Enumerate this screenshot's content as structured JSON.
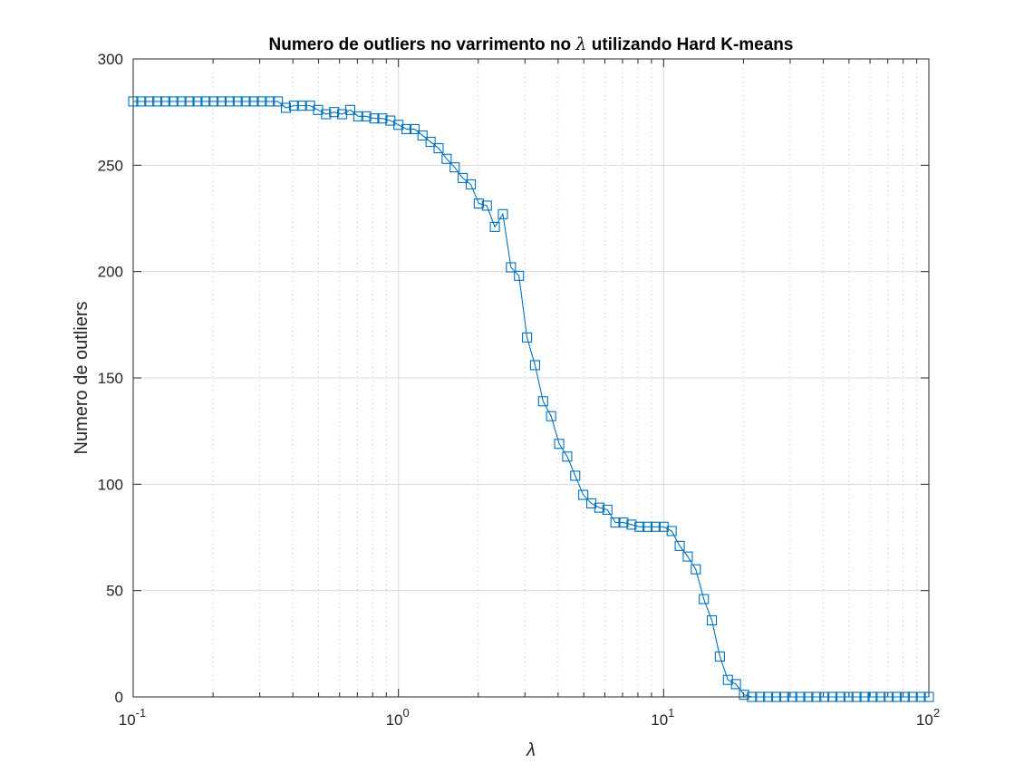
{
  "chart_data": {
    "type": "line",
    "title_prefix": "Numero de outliers no varrimento no ",
    "title_symbol": "λ",
    "title_suffix": " utilizando Hard K-means",
    "xlabel": "λ",
    "ylabel": "Numero de outliers",
    "x_scale": "log",
    "xlim": [
      0.1,
      100
    ],
    "ylim": [
      0,
      300
    ],
    "grid": true,
    "marker": "square",
    "colors": {
      "line": "#0072BD",
      "grid": "#d9d9d9",
      "axes": "#262626"
    },
    "x_ticks": [
      {
        "base": "10",
        "exp": "-1",
        "value": 0.1
      },
      {
        "base": "10",
        "exp": "0",
        "value": 1
      },
      {
        "base": "10",
        "exp": "1",
        "value": 10
      },
      {
        "base": "10",
        "exp": "2",
        "value": 100
      }
    ],
    "y_ticks": [
      {
        "label": "0",
        "value": 0
      },
      {
        "label": "50",
        "value": 50
      },
      {
        "label": "100",
        "value": 100
      },
      {
        "label": "150",
        "value": 150
      },
      {
        "label": "200",
        "value": 200
      },
      {
        "label": "250",
        "value": 250
      },
      {
        "label": "300",
        "value": 300
      }
    ],
    "series": [
      {
        "x": [
          0.1,
          0.1072,
          0.115,
          0.1233,
          0.1322,
          0.1417,
          0.152,
          0.163,
          0.1748,
          0.1874,
          0.2009,
          0.2154,
          0.231,
          0.2477,
          0.2656,
          0.2848,
          0.3054,
          0.3275,
          0.3511,
          0.3765,
          0.4037,
          0.4329,
          0.4642,
          0.4977,
          0.5337,
          0.5722,
          0.6136,
          0.6579,
          0.7055,
          0.7565,
          0.8111,
          0.8697,
          0.9326,
          1.0,
          1.0723,
          1.1498,
          1.2328,
          1.3219,
          1.4175,
          1.5199,
          1.6298,
          1.7475,
          1.8738,
          2.0092,
          2.1544,
          2.3101,
          2.4771,
          2.6561,
          2.848,
          3.0539,
          3.2745,
          3.5112,
          3.7649,
          4.037,
          4.3288,
          4.6416,
          4.977,
          5.3367,
          5.7224,
          6.1359,
          6.5793,
          7.0548,
          7.5646,
          8.1113,
          8.6975,
          9.326,
          10.0,
          10.7227,
          11.4976,
          12.3285,
          13.2194,
          14.1747,
          15.1991,
          16.2975,
          17.4753,
          18.7382,
          20.0923,
          21.5443,
          23.1013,
          24.7708,
          26.5609,
          28.4804,
          30.5386,
          32.7455,
          35.1119,
          37.6494,
          40.3702,
          43.2876,
          46.4159,
          49.7702,
          53.367,
          57.2237,
          61.3591,
          65.7933,
          70.548,
          75.6463,
          81.1131,
          86.9749,
          93.2603,
          100.0
        ],
        "y": [
          280,
          280,
          280,
          280,
          280,
          280,
          280,
          280,
          280,
          280,
          280,
          280,
          280,
          280,
          280,
          280,
          280,
          280,
          280,
          277,
          278,
          278,
          278,
          276,
          274,
          275,
          274,
          276,
          273,
          273,
          272,
          272,
          271,
          269,
          267,
          267,
          264,
          261,
          258,
          253,
          249,
          244,
          241,
          232,
          231,
          221,
          227,
          202,
          198,
          169,
          156,
          139,
          132,
          119,
          113,
          104,
          95,
          91,
          89,
          88,
          82,
          82,
          81,
          80,
          80,
          80,
          80,
          78,
          71,
          66,
          60,
          46,
          36,
          19,
          8,
          6,
          1,
          0,
          0,
          0,
          0,
          0,
          0,
          0,
          0,
          0,
          0,
          0,
          0,
          0,
          0,
          0,
          0,
          0,
          0,
          0,
          0,
          0,
          0,
          0
        ]
      }
    ]
  }
}
